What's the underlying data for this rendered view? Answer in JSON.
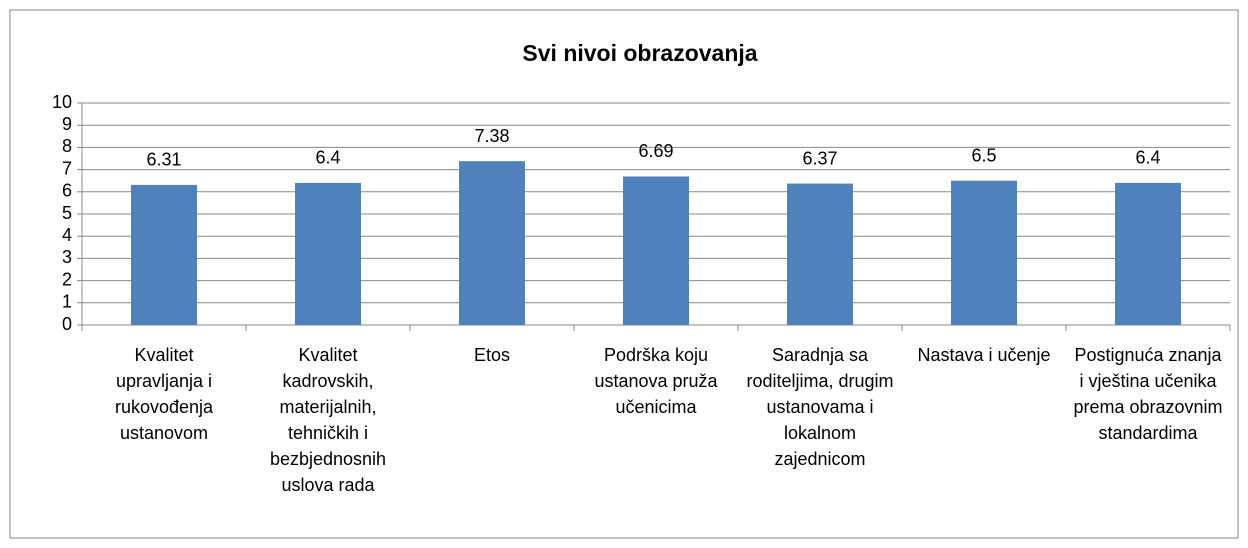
{
  "chart_data": {
    "type": "bar",
    "title": "Svi nivoi obrazovanja",
    "categories": [
      "Kvalitet upravljanja i rukovođenja ustanovom",
      "Kvalitet kadrovskih, materijalnih, tehničkih i bezbjednosnih uslova rada",
      "Etos",
      "Podrška koju ustanova pruža učenicima",
      "Saradnja sa roditeljima, drugim ustanovama i lokalnom zajednicom",
      "Nastava i učenje",
      "Postignuća znanja i vještina učenika prema obrazovnim standardima"
    ],
    "values": [
      6.31,
      6.4,
      7.38,
      6.69,
      6.37,
      6.5,
      6.4
    ],
    "color": "#4f81bd",
    "ylim": [
      0,
      10
    ],
    "yticks": [
      0,
      1,
      2,
      3,
      4,
      5,
      6,
      7,
      8,
      9,
      10
    ],
    "grid": true
  }
}
